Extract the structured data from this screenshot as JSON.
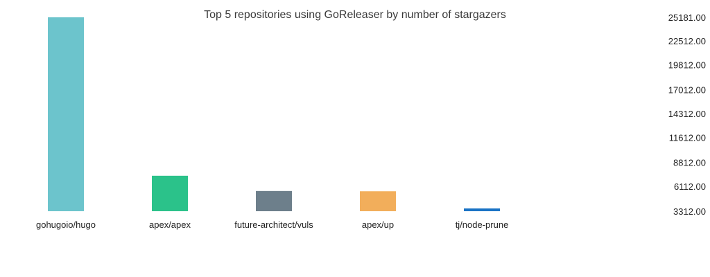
{
  "chart_data": {
    "type": "bar",
    "title": "Top 5 repositories using GoReleaser by number of stargazers",
    "categories": [
      "gohugoio/hugo",
      "apex/apex",
      "future-architect/vuls",
      "apex/up",
      "tj/node-prune"
    ],
    "values": [
      25181,
      7310,
      5590,
      5560,
      3540
    ],
    "colors": [
      "#6cc4cc",
      "#2bc28a",
      "#6d7f8b",
      "#f2ae5b",
      "#1a73c5"
    ],
    "xlabel": "",
    "ylabel": "",
    "ylim": [
      3312,
      25181
    ],
    "yticks": [
      "25181.00",
      "22512.00",
      "19812.00",
      "17012.00",
      "14312.00",
      "11612.00",
      "8812.00",
      "6112.00",
      "3312.00"
    ],
    "ytick_values": [
      25181,
      22512,
      19812,
      17012,
      14312,
      11612,
      8812,
      6112,
      3312
    ],
    "y_axis_position": "right",
    "grid": false,
    "legend": "none"
  }
}
